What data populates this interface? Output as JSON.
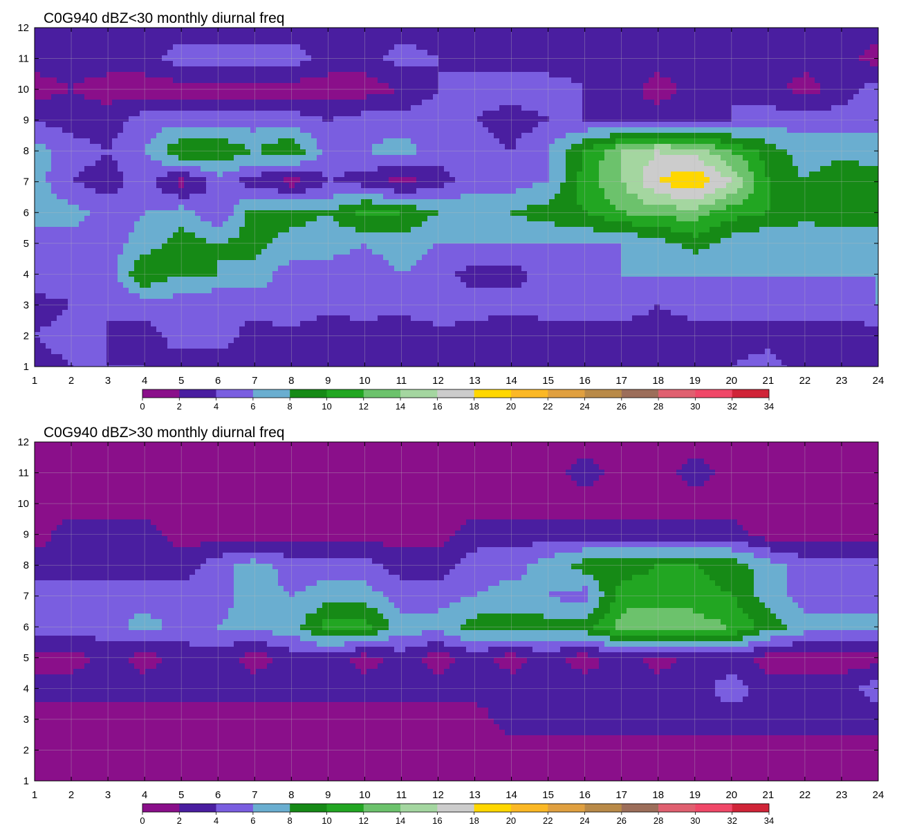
{
  "chart_data": [
    {
      "type": "contour",
      "title": "C0G940 dBZ<30 monthly diurnal freq",
      "xlabel": "",
      "ylabel": "",
      "xlim": [
        1,
        24
      ],
      "ylim": [
        1,
        12
      ],
      "x_ticks": [
        1,
        2,
        3,
        4,
        5,
        6,
        7,
        8,
        9,
        10,
        11,
        12,
        13,
        14,
        15,
        16,
        17,
        18,
        19,
        20,
        21,
        22,
        23,
        24
      ],
      "y_ticks": [
        1,
        2,
        3,
        4,
        5,
        6,
        7,
        8,
        9,
        10,
        11,
        12
      ],
      "grid": true,
      "colorbar": {
        "placement": "bottom",
        "ticks": [
          0,
          2,
          4,
          6,
          8,
          10,
          12,
          14,
          16,
          18,
          20,
          22,
          24,
          26,
          28,
          30,
          32,
          34
        ],
        "colors": [
          "#8a0f8a",
          "#4a1ea0",
          "#7a5ee0",
          "#6aaed0",
          "#168a16",
          "#22a622",
          "#6cc26c",
          "#a4d6a0",
          "#cccccc",
          "#ffd700",
          "#fbb825",
          "#e0a040",
          "#b98a48",
          "#9c6e5a",
          "#e06070",
          "#f04868",
          "#d02438"
        ]
      },
      "estimated_values": [
        [
          3,
          4,
          4,
          4,
          3,
          3,
          3,
          3,
          3,
          3,
          3,
          3,
          3,
          3,
          3,
          3,
          3,
          3,
          3,
          4,
          5,
          3,
          3,
          3
        ],
        [
          4,
          5,
          4,
          3,
          5,
          5,
          3,
          3,
          2,
          3,
          2,
          3,
          3,
          2,
          3,
          3,
          3,
          3,
          3,
          3,
          3,
          3,
          3,
          3
        ],
        [
          3,
          4,
          4,
          5,
          5,
          4,
          5,
          6,
          5,
          5,
          5,
          6,
          5,
          5,
          5,
          5,
          5,
          4,
          5,
          5,
          5,
          5,
          5,
          6
        ],
        [
          6,
          5,
          5,
          10,
          8,
          8,
          7,
          5,
          5,
          5,
          6,
          5,
          3,
          3,
          5,
          5,
          6,
          6,
          6,
          6,
          6,
          6,
          6,
          6
        ],
        [
          5,
          5,
          5,
          7,
          9,
          8,
          9,
          7,
          7,
          6,
          7,
          6,
          6,
          6,
          6,
          6,
          6,
          7,
          9,
          7,
          6,
          6,
          6,
          6
        ],
        [
          7,
          7,
          5,
          6,
          7,
          4,
          9,
          9,
          8,
          11,
          10,
          8,
          8,
          8,
          9,
          10,
          12,
          13,
          13,
          11,
          10,
          9,
          10,
          10
        ],
        [
          7,
          4,
          3,
          5,
          1,
          5,
          3,
          1,
          4,
          3,
          1,
          3,
          5,
          5,
          6,
          11,
          14,
          18,
          20,
          16,
          10,
          8,
          10,
          9
        ],
        [
          7,
          5,
          4,
          6,
          10,
          10,
          8,
          10,
          5,
          6,
          7,
          5,
          5,
          4,
          6,
          10,
          14,
          16,
          15,
          12,
          9,
          7,
          7,
          7
        ],
        [
          4,
          3,
          3,
          5,
          5,
          5,
          5,
          5,
          4,
          5,
          5,
          5,
          4,
          3,
          4,
          4,
          3,
          3,
          4,
          4,
          5,
          5,
          5,
          5
        ],
        [
          1,
          2,
          1,
          1,
          1,
          1,
          1,
          1,
          1,
          1,
          2,
          4,
          5,
          5,
          5,
          4,
          3,
          1,
          3,
          4,
          3,
          1,
          3,
          5
        ],
        [
          3,
          3,
          3,
          3,
          5,
          5,
          5,
          5,
          3,
          3,
          5,
          4,
          3,
          3,
          3,
          3,
          3,
          3,
          3,
          3,
          3,
          3,
          3,
          1
        ],
        [
          3,
          3,
          3,
          3,
          3,
          3,
          3,
          3,
          3,
          3,
          3,
          3,
          3,
          3,
          3,
          3,
          3,
          3,
          3,
          3,
          3,
          3,
          3,
          3
        ]
      ]
    },
    {
      "type": "contour",
      "title": "C0G940 dBZ>30 monthly diurnal freq",
      "xlabel": "",
      "ylabel": "",
      "xlim": [
        1,
        24
      ],
      "ylim": [
        1,
        12
      ],
      "x_ticks": [
        1,
        2,
        3,
        4,
        5,
        6,
        7,
        8,
        9,
        10,
        11,
        12,
        13,
        14,
        15,
        16,
        17,
        18,
        19,
        20,
        21,
        22,
        23,
        24
      ],
      "y_ticks": [
        1,
        2,
        3,
        4,
        5,
        6,
        7,
        8,
        9,
        10,
        11,
        12
      ],
      "grid": true,
      "colorbar": {
        "placement": "bottom",
        "ticks": [
          0,
          2,
          4,
          6,
          8,
          10,
          12,
          14,
          16,
          18,
          20,
          22,
          24,
          26,
          28,
          30,
          32,
          34
        ],
        "colors": [
          "#8a0f8a",
          "#4a1ea0",
          "#7a5ee0",
          "#6aaed0",
          "#168a16",
          "#22a622",
          "#6cc26c",
          "#a4d6a0",
          "#cccccc",
          "#ffd700",
          "#fbb825",
          "#e0a040",
          "#b98a48",
          "#9c6e5a",
          "#e06070",
          "#f04868",
          "#d02438"
        ]
      },
      "estimated_values": [
        [
          1,
          1,
          1,
          1,
          1,
          1,
          1,
          1,
          1,
          1,
          1,
          1,
          1,
          1,
          1,
          1,
          1,
          1,
          1,
          1,
          1,
          1,
          1,
          1
        ],
        [
          1,
          1,
          1,
          1,
          1,
          1,
          1,
          1,
          1,
          1,
          1,
          1,
          1,
          1,
          1,
          1,
          1,
          1,
          1,
          1,
          1,
          1,
          1,
          1
        ],
        [
          1,
          1,
          1,
          1,
          1,
          1,
          1,
          1,
          1,
          1,
          1,
          1,
          1,
          3,
          3,
          3,
          3,
          3,
          3,
          3,
          3,
          3,
          3,
          3
        ],
        [
          3,
          3,
          3,
          3,
          3,
          3,
          3,
          3,
          3,
          3,
          3,
          3,
          3,
          3,
          3,
          3,
          3,
          3,
          3,
          5,
          3,
          3,
          3,
          5
        ],
        [
          1,
          1,
          3,
          1,
          3,
          3,
          1,
          3,
          3,
          1,
          3,
          1,
          3,
          1,
          3,
          1,
          3,
          1,
          3,
          3,
          1,
          1,
          1,
          1
        ],
        [
          5,
          5,
          5,
          7,
          5,
          6,
          7,
          7,
          11,
          11,
          7,
          7,
          9,
          9,
          9,
          9,
          13,
          14,
          13,
          12,
          9,
          7,
          7,
          7
        ],
        [
          5,
          5,
          5,
          5,
          5,
          5,
          7,
          6,
          7,
          7,
          5,
          5,
          6,
          7,
          6,
          5,
          11,
          11,
          11,
          10,
          7,
          5,
          5,
          5
        ],
        [
          3,
          3,
          3,
          3,
          3,
          5,
          7,
          5,
          5,
          5,
          3,
          3,
          5,
          5,
          7,
          9,
          9,
          10,
          10,
          9,
          7,
          5,
          5,
          5
        ],
        [
          1,
          3,
          3,
          3,
          1,
          1,
          1,
          1,
          1,
          1,
          1,
          1,
          3,
          3,
          3,
          3,
          3,
          3,
          3,
          3,
          1,
          1,
          1,
          1
        ],
        [
          1,
          1,
          1,
          1,
          1,
          1,
          1,
          1,
          1,
          1,
          1,
          1,
          1,
          1,
          1,
          1,
          1,
          1,
          1,
          1,
          1,
          1,
          1,
          1
        ],
        [
          1,
          1,
          1,
          1,
          1,
          1,
          1,
          1,
          1,
          1,
          1,
          1,
          1,
          1,
          1,
          3,
          1,
          1,
          3,
          1,
          1,
          1,
          1,
          1
        ],
        [
          1,
          1,
          1,
          1,
          1,
          1,
          1,
          1,
          1,
          1,
          1,
          1,
          1,
          1,
          1,
          1,
          1,
          1,
          1,
          1,
          1,
          1,
          1,
          1
        ]
      ]
    }
  ]
}
